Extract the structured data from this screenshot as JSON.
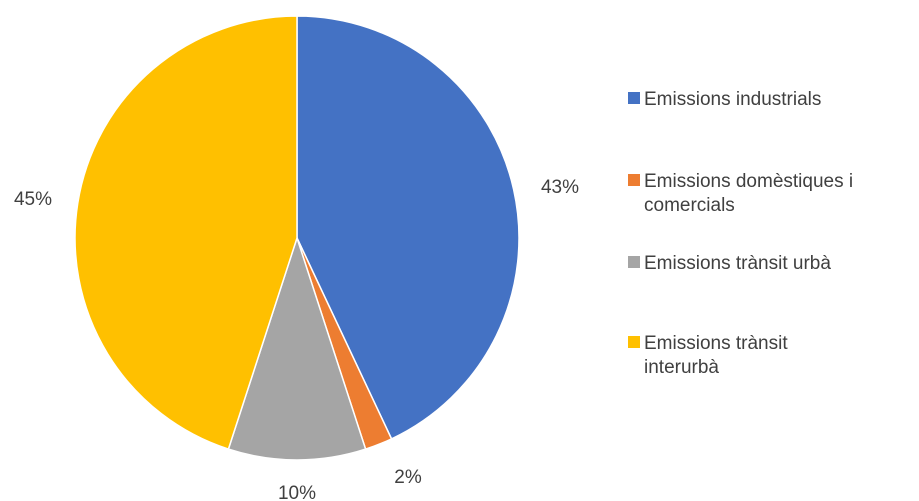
{
  "chart_data": {
    "type": "pie",
    "title": "",
    "start_angle_deg": 0,
    "direction": "clockwise",
    "slices": [
      {
        "label": "Emissions industrials",
        "value": 43,
        "display": "43%",
        "color": "#4472C4"
      },
      {
        "label": "Emissions domèstiques i comercials",
        "value": 2,
        "display": "2%",
        "color": "#ED7D31"
      },
      {
        "label": "Emissions trànsit urbà",
        "value": 10,
        "display": "10%",
        "color": "#A5A5A5"
      },
      {
        "label": "Emissions trànsit interurbà",
        "value": 45,
        "display": "45%",
        "color": "#FFC000"
      }
    ],
    "legend_position": "right"
  }
}
